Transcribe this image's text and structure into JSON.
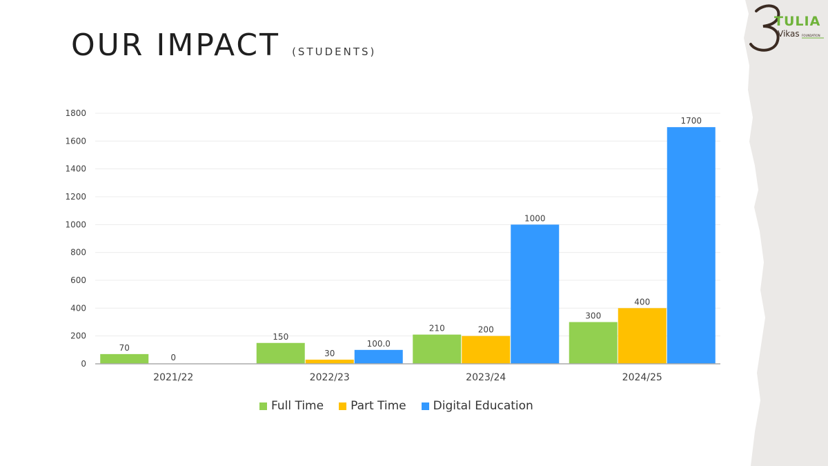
{
  "header": {
    "title": "OUR IMPACT",
    "subtitle": "(STUDENTS)"
  },
  "logo": {
    "line1": "TULIA",
    "line2": "Vikas",
    "line3": "FOUNDATION",
    "colors": {
      "green": "#6fb33a",
      "brown": "#3b2b22"
    }
  },
  "colors": {
    "edge_background": "#ebe9e7",
    "axis": "#aaaaaa",
    "grid": "#ececec",
    "text": "#333333"
  },
  "chart_data": {
    "type": "bar",
    "title": "",
    "xlabel": "",
    "ylabel": "",
    "categories": [
      "2021/22",
      "2022/23",
      "2023/24",
      "2024/25"
    ],
    "ylim": [
      0,
      1800
    ],
    "yticks": [
      "0",
      "200",
      "400",
      "600",
      "800",
      "1000",
      "1200",
      "1400",
      "1600",
      "1800"
    ],
    "grid": true,
    "legend_position": "bottom",
    "series": [
      {
        "name": "Full Time",
        "color": "#92d050",
        "values": [
          70,
          150,
          210,
          300
        ],
        "labels": [
          "70",
          "150",
          "210",
          "300"
        ]
      },
      {
        "name": "Part Time",
        "color": "#ffc000",
        "values": [
          0,
          30,
          200,
          400
        ],
        "labels": [
          "0",
          "30",
          "200",
          "400"
        ]
      },
      {
        "name": "Digital Education",
        "color": "#3399ff",
        "values": [
          null,
          100,
          1000,
          1700
        ],
        "labels": [
          "",
          "100.0",
          "1000",
          "1700"
        ]
      }
    ]
  }
}
